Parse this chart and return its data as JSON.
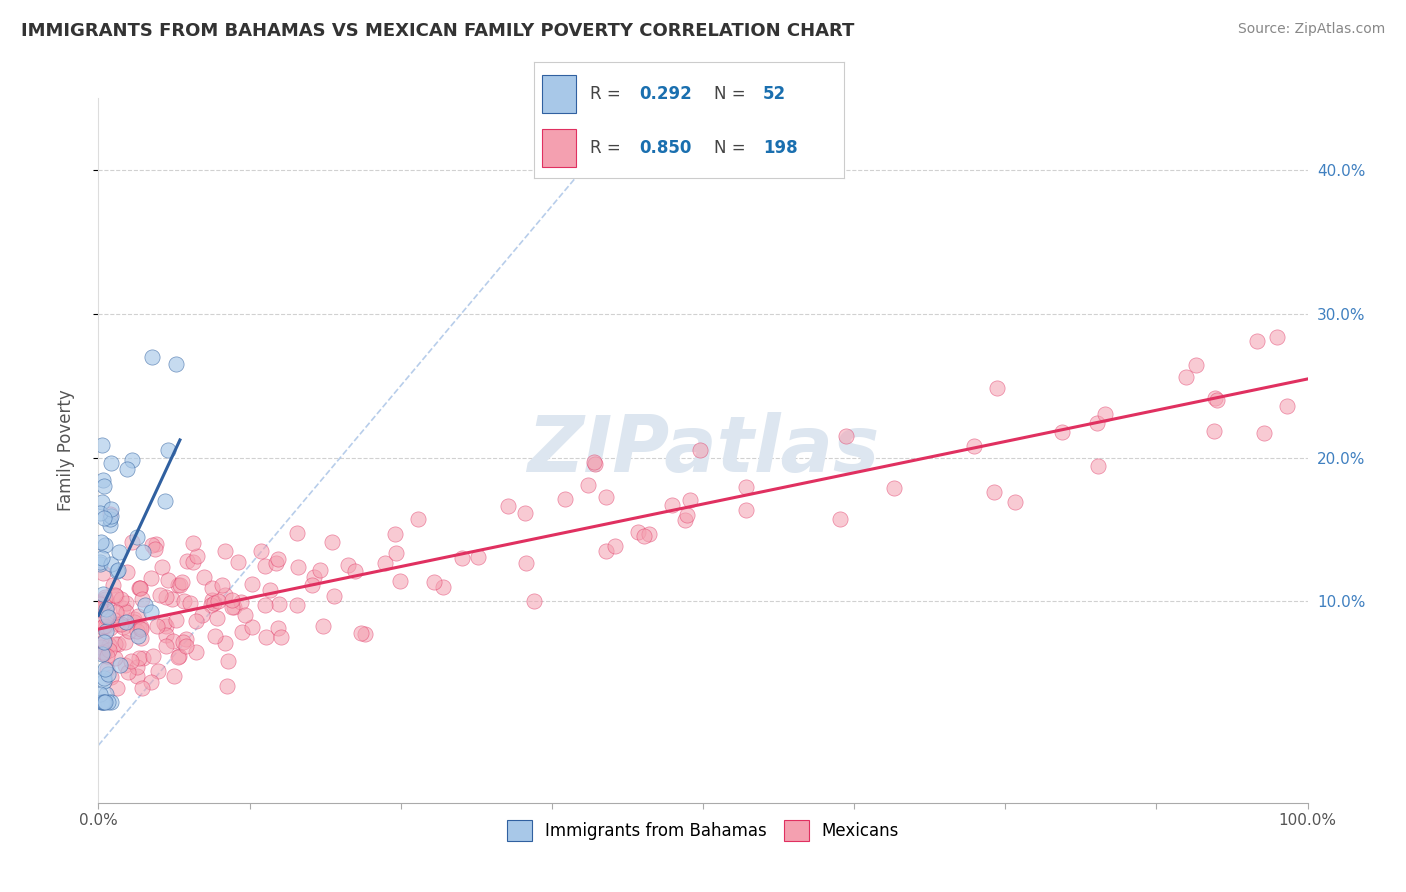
{
  "title": "IMMIGRANTS FROM BAHAMAS VS MEXICAN FAMILY POVERTY CORRELATION CHART",
  "source_text": "Source: ZipAtlas.com",
  "ylabel": "Family Poverty",
  "legend_labels": [
    "Immigrants from Bahamas",
    "Mexicans"
  ],
  "r_bahamas": 0.292,
  "n_bahamas": 52,
  "r_mexicans": 0.85,
  "n_mexicans": 198,
  "blue_color": "#a8c8e8",
  "pink_color": "#f4a0b0",
  "blue_line_color": "#3060a0",
  "pink_line_color": "#e03060",
  "diag_line_color": "#b0c8e8",
  "background_color": "#ffffff",
  "grid_color": "#cccccc",
  "xlim": [
    0.0,
    1.0
  ],
  "ylim": [
    -0.04,
    0.45
  ],
  "title_color": "#333333",
  "legend_r_color": "#1a6faf",
  "watermark_color": "#dde6f0",
  "xtick_labels": [
    "0.0%",
    "100.0%"
  ],
  "xtick_positions": [
    0.0,
    1.0
  ],
  "ytick_positions": [
    0.1,
    0.2,
    0.3,
    0.4
  ],
  "ytick_labels": [
    "10.0%",
    "20.0%",
    "30.0%",
    "40.0%"
  ]
}
